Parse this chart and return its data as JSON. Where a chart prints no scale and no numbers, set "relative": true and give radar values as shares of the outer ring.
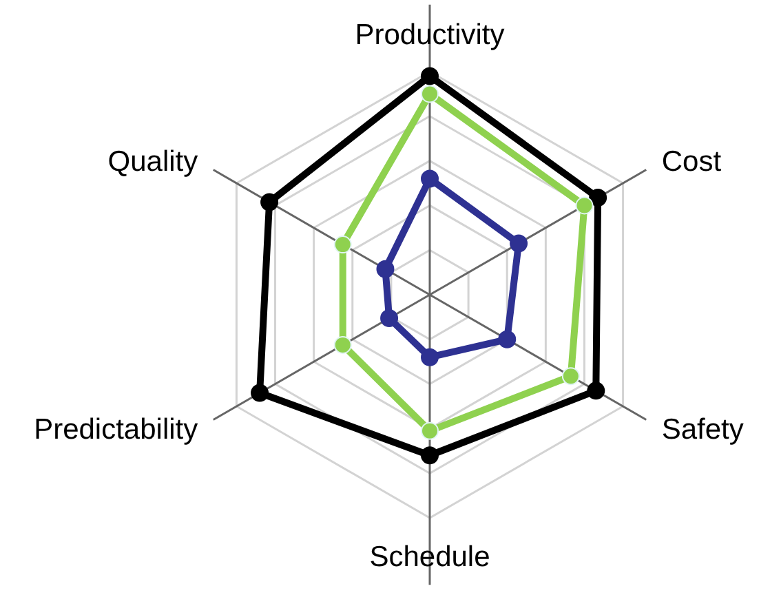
{
  "chart_data": {
    "type": "radar",
    "relative": true,
    "grid": true,
    "marker": "circle",
    "line_style": "solid",
    "categories": [
      "Productivity",
      "Cost",
      "Safety",
      "Schedule",
      "Predictability",
      "Quality"
    ],
    "series": [
      {
        "color": "#000000",
        "values": [
          0.98,
          0.87,
          0.86,
          0.72,
          0.88,
          0.83
        ]
      },
      {
        "color": "#8fd14f",
        "values": [
          0.9,
          0.8,
          0.73,
          0.61,
          0.45,
          0.45
        ]
      },
      {
        "color": "#2e3192",
        "values": [
          0.52,
          0.46,
          0.4,
          0.28,
          0.21,
          0.23
        ]
      }
    ]
  }
}
